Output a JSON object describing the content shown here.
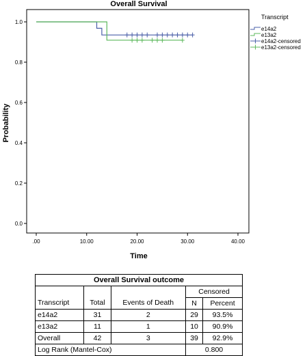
{
  "chart_data": {
    "type": "line",
    "subtype": "kaplan-meier",
    "title": "Overall Survival",
    "xlabel": "Time",
    "ylabel": "Probability",
    "xlim": [
      0,
      40
    ],
    "ylim": [
      0,
      1.0
    ],
    "x_ticks": [
      {
        "value": 0,
        "label": ".00"
      },
      {
        "value": 10,
        "label": "10.00"
      },
      {
        "value": 20,
        "label": "20.00"
      },
      {
        "value": 30,
        "label": "30.00"
      },
      {
        "value": 40,
        "label": "40.00"
      }
    ],
    "y_ticks": [
      {
        "value": 0,
        "label": "0.0"
      },
      {
        "value": 0.2,
        "label": "0.2"
      },
      {
        "value": 0.4,
        "label": "0.4"
      },
      {
        "value": 0.6,
        "label": "0.6"
      },
      {
        "value": 0.8,
        "label": "0.8"
      },
      {
        "value": 1.0,
        "label": "1.0"
      }
    ],
    "grid": false,
    "legend": {
      "title": "Transcript",
      "position": "top-right"
    },
    "series": [
      {
        "name": "e14a2",
        "color": "#4a5fa8",
        "steps": [
          [
            0,
            1.0
          ],
          [
            12,
            1.0
          ],
          [
            12,
            0.968
          ],
          [
            13,
            0.968
          ],
          [
            13,
            0.935
          ],
          [
            31,
            0.935
          ]
        ],
        "censored_name": "e14a2-censored",
        "censored_x": [
          18,
          19,
          20,
          21,
          22,
          24,
          25,
          26,
          27,
          28,
          29,
          30,
          31
        ]
      },
      {
        "name": "e13a2",
        "color": "#5cb85c",
        "steps": [
          [
            0,
            1.0
          ],
          [
            14,
            1.0
          ],
          [
            14,
            0.909
          ],
          [
            29,
            0.909
          ]
        ],
        "censored_name": "e13a2-censored",
        "censored_x": [
          19,
          20,
          21,
          23,
          24,
          25,
          29
        ]
      }
    ]
  },
  "table": {
    "title": "Overall Survival outcome",
    "censored_header": "Censored",
    "headers": {
      "transcript": "Transcript",
      "total": "Total",
      "events": "Events of Death",
      "n": "N",
      "percent": "Percent"
    },
    "rows": [
      {
        "transcript": "e14a2",
        "total": "31",
        "events": "2",
        "n": "29",
        "percent": "93.5%"
      },
      {
        "transcript": "e13a2",
        "total": "11",
        "events": "1",
        "n": "10",
        "percent": "90.9%"
      },
      {
        "transcript": "Overall",
        "total": "42",
        "events": "3",
        "n": "39",
        "percent": "92.9%"
      }
    ],
    "logrank_label": "Log Rank (Mantel-Cox)",
    "logrank_value": "0.800"
  }
}
